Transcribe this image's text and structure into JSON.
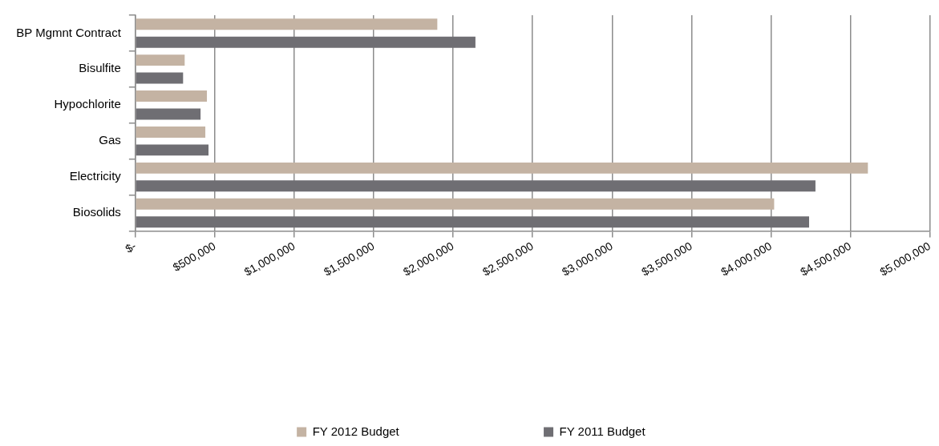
{
  "chart_data": {
    "type": "bar",
    "orientation": "horizontal",
    "categories": [
      "BP Mgmnt Contract",
      "Bisulfite",
      "Hypochlorite",
      "Gas",
      "Electricity",
      "Biosolids"
    ],
    "series": [
      {
        "name": "FY 2012 Budget",
        "color": "#c4b3a3",
        "values": [
          1900000,
          310000,
          450000,
          440000,
          4610000,
          4020000
        ]
      },
      {
        "name": "FY 2011 Budget",
        "color": "#6f6e73",
        "values": [
          2140000,
          300000,
          410000,
          460000,
          4280000,
          4240000
        ]
      }
    ],
    "xlim": [
      0,
      5000000
    ],
    "xticks": [
      {
        "value": 0,
        "label": "$-"
      },
      {
        "value": 500000,
        "label": "$500,000"
      },
      {
        "value": 1000000,
        "label": "$1,000,000"
      },
      {
        "value": 1500000,
        "label": "$1,500,000"
      },
      {
        "value": 2000000,
        "label": "$2,000,000"
      },
      {
        "value": 2500000,
        "label": "$2,500,000"
      },
      {
        "value": 3000000,
        "label": "$3,000,000"
      },
      {
        "value": 3500000,
        "label": "$3,500,000"
      },
      {
        "value": 4000000,
        "label": "$4,000,000"
      },
      {
        "value": 4500000,
        "label": "$4,500,000"
      },
      {
        "value": 5000000,
        "label": "$5,000,000"
      }
    ],
    "grid": "x",
    "legend": "bottom"
  }
}
